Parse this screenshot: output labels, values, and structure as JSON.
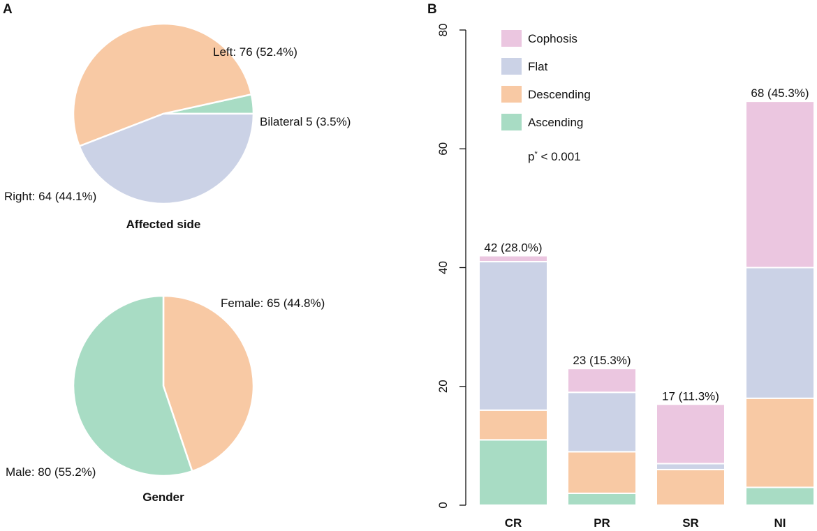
{
  "panels": {
    "a": "A",
    "b": "B"
  },
  "chart_data": [
    {
      "type": "pie",
      "title": "Affected side",
      "slices": [
        {
          "name": "Bilateral",
          "value": 5,
          "label": "Bilateral 5 (3.5%)",
          "color": "#a8dcc4"
        },
        {
          "name": "Left",
          "value": 76,
          "label": "Left: 76 (52.4%)",
          "color": "#f8c9a4"
        },
        {
          "name": "Right",
          "value": 64,
          "label": "Right: 64 (44.1%)",
          "color": "#cbd2e6"
        }
      ]
    },
    {
      "type": "pie",
      "title": "Gender",
      "slices": [
        {
          "name": "Female",
          "value": 65,
          "label": "Female: 65 (44.8%)",
          "color": "#f8c9a4"
        },
        {
          "name": "Male",
          "value": 80,
          "label": "Male: 80 (55.2%)",
          "color": "#a8dcc4"
        }
      ]
    },
    {
      "type": "bar",
      "stacked": true,
      "categories": [
        "CR",
        "PR",
        "SR",
        "NI"
      ],
      "series": [
        {
          "name": "Ascending",
          "color": "#a8dcc4",
          "values": [
            11,
            2,
            0,
            3
          ]
        },
        {
          "name": "Descending",
          "color": "#f8c9a4",
          "values": [
            5,
            7,
            6,
            15
          ]
        },
        {
          "name": "Flat",
          "color": "#cbd2e6",
          "values": [
            25,
            10,
            1,
            22
          ]
        },
        {
          "name": "Cophosis",
          "color": "#ebc6e0",
          "values": [
            1,
            4,
            10,
            28
          ]
        }
      ],
      "totals_labels": [
        "42 (28.0%)",
        "23 (15.3%)",
        "17 (11.3%)",
        "68 (45.3%)"
      ],
      "legend": [
        "Cophosis",
        "Flat",
        "Descending",
        "Ascending"
      ],
      "legend_position": "top-left",
      "annotation": {
        "base": "p",
        "sup": "*",
        "rest": " < 0.001"
      },
      "yticks": [
        0,
        20,
        40,
        60,
        80
      ],
      "ylim": [
        0,
        80
      ],
      "xlabel": "",
      "ylabel": ""
    }
  ]
}
